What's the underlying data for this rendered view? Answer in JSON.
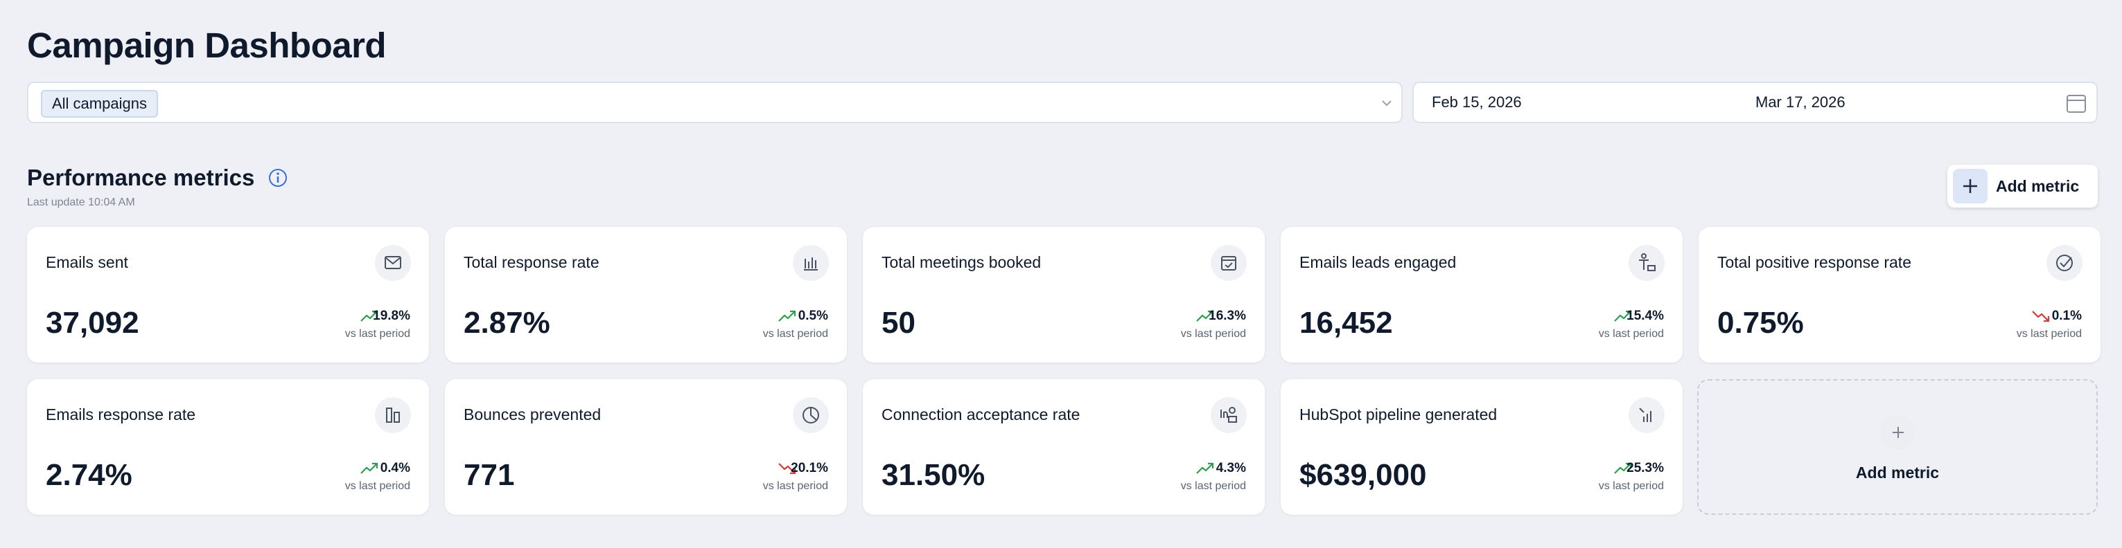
{
  "header": {
    "title": "Campaign Dashboard"
  },
  "filters": {
    "campaign": "All campaigns",
    "start_date": "Feb 15, 2026",
    "end_date": "Mar 17, 2026"
  },
  "section": {
    "title": "Performance metrics",
    "last_update": "Last update 10:04 AM",
    "add_button": "Add metric"
  },
  "metrics": [
    {
      "name": "Emails sent",
      "value": "37,092",
      "change": "19.8%",
      "trend": "up",
      "comparison": "vs last period"
    },
    {
      "name": "Total response rate",
      "value": "2.87%",
      "change": "0.5%",
      "trend": "up",
      "comparison": "vs last period"
    },
    {
      "name": "Total meetings booked",
      "value": "50",
      "change": "16.3%",
      "trend": "up",
      "comparison": "vs last period"
    },
    {
      "name": "Emails leads engaged",
      "value": "16,452",
      "change": "15.4%",
      "trend": "up",
      "comparison": "vs last period"
    },
    {
      "name": "Total positive response rate",
      "value": "0.75%",
      "change": "0.1%",
      "trend": "down",
      "comparison": "vs last period"
    },
    {
      "name": "Emails response rate",
      "value": "2.74%",
      "change": "0.4%",
      "trend": "up",
      "comparison": "vs last period"
    },
    {
      "name": "Bounces prevented",
      "value": "771",
      "change": "20.1%",
      "trend": "down",
      "comparison": "vs last period"
    },
    {
      "name": "Connection acceptance rate",
      "value": "31.50%",
      "change": "4.3%",
      "trend": "up",
      "comparison": "vs last period"
    },
    {
      "name": "HubSpot pipeline generated",
      "value": "$639,000",
      "change": "25.3%",
      "trend": "up",
      "comparison": "vs last period"
    }
  ],
  "add_card": {
    "label": "Add metric"
  }
}
